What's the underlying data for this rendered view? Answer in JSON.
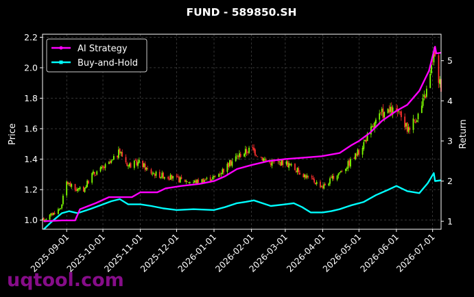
{
  "chart_data": {
    "type": "line",
    "title": "FUND - 589850.SH",
    "ylabel_left": "Price",
    "ylabel_right": "Return",
    "x_tick_labels": [
      "2025-09-01",
      "2025-10-01",
      "2025-11-01",
      "2025-12-01",
      "2026-01-01",
      "2026-02-01",
      "2026-03-01",
      "2026-04-01",
      "2026-05-01",
      "2026-06-01",
      "2026-07-01"
    ],
    "x_range": [
      "2025-08-12",
      "2026-07-08"
    ],
    "y_left_ticks": [
      "1.0",
      "1.2",
      "1.4",
      "1.6",
      "1.8",
      "2.0",
      "2.2"
    ],
    "y_left_range": [
      0.94,
      2.22
    ],
    "y_right_ticks": [
      "1",
      "2",
      "3",
      "4",
      "5"
    ],
    "y_right_range": [
      0.8,
      5.66
    ],
    "grid": true,
    "legend_position": "top-left",
    "colors": {
      "background": "#000000",
      "ai_strategy": "#ff00ff",
      "buy_and_hold": "#00ffff",
      "candle_up": "#7fff00",
      "candle_down": "#ff3030",
      "grid": "#555555",
      "watermark": "#8e0e91"
    },
    "series": [
      {
        "name": "AI Strategy",
        "axis": "right",
        "points": [
          [
            "2025-08-13",
            1.0
          ],
          [
            "2025-08-28",
            1.02
          ],
          [
            "2025-09-08",
            1.02
          ],
          [
            "2025-09-12",
            1.3
          ],
          [
            "2025-09-25",
            1.45
          ],
          [
            "2025-10-06",
            1.6
          ],
          [
            "2025-10-25",
            1.6
          ],
          [
            "2025-11-01",
            1.72
          ],
          [
            "2025-11-15",
            1.72
          ],
          [
            "2025-11-22",
            1.82
          ],
          [
            "2025-12-05",
            1.88
          ],
          [
            "2025-12-20",
            1.93
          ],
          [
            "2026-01-01",
            2.0
          ],
          [
            "2026-01-10",
            2.12
          ],
          [
            "2026-01-20",
            2.3
          ],
          [
            "2026-02-01",
            2.4
          ],
          [
            "2026-02-15",
            2.5
          ],
          [
            "2026-03-01",
            2.55
          ],
          [
            "2026-03-15",
            2.58
          ],
          [
            "2026-03-31",
            2.62
          ],
          [
            "2026-04-15",
            2.7
          ],
          [
            "2026-04-25",
            2.9
          ],
          [
            "2026-05-01",
            3.0
          ],
          [
            "2026-05-10",
            3.2
          ],
          [
            "2026-05-20",
            3.5
          ],
          [
            "2026-06-01",
            3.75
          ],
          [
            "2026-06-10",
            3.9
          ],
          [
            "2026-06-20",
            4.25
          ],
          [
            "2026-06-28",
            4.75
          ],
          [
            "2026-07-03",
            5.35
          ],
          [
            "2026-07-04",
            5.18
          ],
          [
            "2026-07-08",
            5.2
          ]
        ]
      },
      {
        "name": "Buy-and-Hold",
        "axis": "right",
        "points": [
          [
            "2025-08-13",
            0.8
          ],
          [
            "2025-08-20",
            1.0
          ],
          [
            "2025-08-28",
            1.2
          ],
          [
            "2025-09-03",
            1.25
          ],
          [
            "2025-09-10",
            1.2
          ],
          [
            "2025-09-20",
            1.3
          ],
          [
            "2025-10-01",
            1.42
          ],
          [
            "2025-10-08",
            1.5
          ],
          [
            "2025-10-15",
            1.55
          ],
          [
            "2025-10-22",
            1.42
          ],
          [
            "2025-11-01",
            1.42
          ],
          [
            "2025-11-10",
            1.38
          ],
          [
            "2025-11-20",
            1.32
          ],
          [
            "2025-12-01",
            1.28
          ],
          [
            "2025-12-15",
            1.3
          ],
          [
            "2026-01-01",
            1.28
          ],
          [
            "2026-01-10",
            1.35
          ],
          [
            "2026-01-20",
            1.45
          ],
          [
            "2026-01-27",
            1.48
          ],
          [
            "2026-02-03",
            1.52
          ],
          [
            "2026-02-10",
            1.45
          ],
          [
            "2026-02-17",
            1.38
          ],
          [
            "2026-03-01",
            1.42
          ],
          [
            "2026-03-08",
            1.45
          ],
          [
            "2026-03-15",
            1.35
          ],
          [
            "2026-03-22",
            1.22
          ],
          [
            "2026-04-01",
            1.22
          ],
          [
            "2026-04-08",
            1.25
          ],
          [
            "2026-04-15",
            1.3
          ],
          [
            "2026-04-25",
            1.4
          ],
          [
            "2026-05-05",
            1.48
          ],
          [
            "2026-05-15",
            1.65
          ],
          [
            "2026-05-25",
            1.78
          ],
          [
            "2026-06-01",
            1.88
          ],
          [
            "2026-06-10",
            1.75
          ],
          [
            "2026-06-20",
            1.7
          ],
          [
            "2026-06-27",
            1.95
          ],
          [
            "2026-07-02",
            2.2
          ],
          [
            "2026-07-03",
            2.0
          ],
          [
            "2026-07-08",
            2.02
          ]
        ]
      },
      {
        "name": "Price (candlestick)",
        "axis": "left",
        "points": [
          [
            "2025-08-12",
            1.0
          ],
          [
            "2025-08-20",
            1.04
          ],
          [
            "2025-08-27",
            1.08
          ],
          [
            "2025-09-01",
            1.25
          ],
          [
            "2025-09-08",
            1.2
          ],
          [
            "2025-09-15",
            1.2
          ],
          [
            "2025-09-22",
            1.3
          ],
          [
            "2025-10-01",
            1.34
          ],
          [
            "2025-10-08",
            1.38
          ],
          [
            "2025-10-15",
            1.45
          ],
          [
            "2025-10-22",
            1.36
          ],
          [
            "2025-11-01",
            1.38
          ],
          [
            "2025-11-08",
            1.32
          ],
          [
            "2025-11-15",
            1.3
          ],
          [
            "2025-11-22",
            1.29
          ],
          [
            "2025-12-01",
            1.27
          ],
          [
            "2025-12-15",
            1.25
          ],
          [
            "2026-01-01",
            1.28
          ],
          [
            "2026-01-10",
            1.34
          ],
          [
            "2026-01-20",
            1.42
          ],
          [
            "2026-02-01",
            1.47
          ],
          [
            "2026-02-08",
            1.42
          ],
          [
            "2026-02-15",
            1.38
          ],
          [
            "2026-03-01",
            1.38
          ],
          [
            "2026-03-10",
            1.33
          ],
          [
            "2026-03-20",
            1.28
          ],
          [
            "2026-04-01",
            1.22
          ],
          [
            "2026-04-10",
            1.28
          ],
          [
            "2026-04-20",
            1.35
          ],
          [
            "2026-05-01",
            1.45
          ],
          [
            "2026-05-10",
            1.58
          ],
          [
            "2026-05-20",
            1.7
          ],
          [
            "2026-06-01",
            1.72
          ],
          [
            "2026-06-10",
            1.6
          ],
          [
            "2026-06-20",
            1.7
          ],
          [
            "2026-06-28",
            1.9
          ],
          [
            "2026-07-02",
            2.1
          ],
          [
            "2026-07-05",
            1.95
          ],
          [
            "2026-07-08",
            1.88
          ]
        ]
      }
    ]
  },
  "watermark_text": "uqtool.com"
}
